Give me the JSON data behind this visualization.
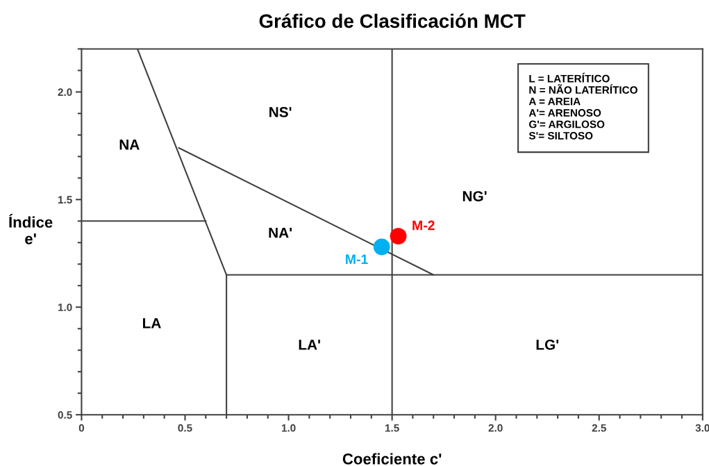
{
  "chart_data": {
    "type": "scatter",
    "title": "Gráfico de Clasificación MCT",
    "xlabel": "Coeficiente c'",
    "ylabel": "Índice\ne'",
    "xlim": [
      0,
      3.0
    ],
    "ylim": [
      0.5,
      2.2
    ],
    "xticks": [
      {
        "value": 0,
        "label": "0"
      },
      {
        "value": 0.5,
        "label": "0.5"
      },
      {
        "value": 1.0,
        "label": "1.0"
      },
      {
        "value": 1.5,
        "label": "1.5"
      },
      {
        "value": 2.0,
        "label": "2.0"
      },
      {
        "value": 2.5,
        "label": "2.5"
      },
      {
        "value": 3.0,
        "label": "3.0"
      }
    ],
    "yticks": [
      {
        "value": 0.5,
        "label": "0.5"
      },
      {
        "value": 1.0,
        "label": "1.0"
      },
      {
        "value": 1.5,
        "label": "1.5"
      },
      {
        "value": 2.0,
        "label": "2.0"
      }
    ],
    "grid": false,
    "legend": false,
    "series": [
      {
        "type": "line",
        "color": "#404040",
        "x": [
          0.27,
          0.7,
          0.7
        ],
        "values": [
          2.2,
          1.15,
          0.5
        ],
        "marker": "none"
      },
      {
        "type": "line",
        "color": "#404040",
        "x": [
          0,
          0.6
        ],
        "values": [
          1.4,
          1.4
        ],
        "marker": "none"
      },
      {
        "type": "line",
        "color": "#404040",
        "x": [
          0.47,
          1.7
        ],
        "values": [
          1.74,
          1.15
        ],
        "marker": "none"
      },
      {
        "type": "line",
        "color": "#404040",
        "x": [
          0.7,
          3.0
        ],
        "values": [
          1.15,
          1.15
        ],
        "marker": "none"
      },
      {
        "type": "line",
        "color": "#404040",
        "x": [
          1.5,
          1.5
        ],
        "values": [
          0.5,
          2.2
        ],
        "marker": "none"
      },
      {
        "name": "M-1",
        "color": "#00b0f0",
        "x": [
          1.45
        ],
        "values": [
          1.28
        ],
        "marker": "circle"
      },
      {
        "name": "M-2",
        "color": "#ff0000",
        "x": [
          1.53
        ],
        "values": [
          1.33
        ],
        "marker": "circle"
      }
    ],
    "annotations": [
      "NA",
      "NS'",
      "NG'",
      "NA'",
      "LA",
      "LA'",
      "LG'",
      "L = LATERÍTICO\nN = NÃO LATERÍTICO\nA = AREIA\nA'= ARENOSO\nG'= ARGILOSO\nS'= SILTOSO"
    ]
  }
}
